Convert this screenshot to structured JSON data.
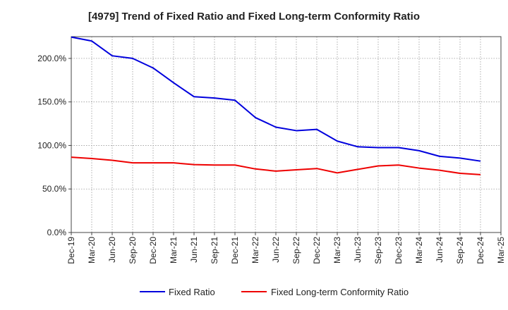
{
  "chart_data": {
    "type": "line",
    "title": "[4979]  Trend of Fixed Ratio and Fixed Long-term Conformity Ratio",
    "xlabel": "",
    "ylabel": "",
    "x": [
      "Dec-19",
      "Mar-20",
      "Jun-20",
      "Sep-20",
      "Dec-20",
      "Mar-21",
      "Jun-21",
      "Sep-21",
      "Dec-21",
      "Mar-22",
      "Jun-22",
      "Sep-22",
      "Dec-22",
      "Mar-23",
      "Jun-23",
      "Sep-23",
      "Dec-23",
      "Mar-24",
      "Jun-24",
      "Sep-24",
      "Dec-24",
      "Mar-25"
    ],
    "ylim": [
      0,
      225
    ],
    "yticks": [
      0,
      50,
      100,
      150,
      200
    ],
    "ytick_labels": [
      "0.0%",
      "50.0%",
      "100.0%",
      "150.0%",
      "200.0%"
    ],
    "grid": true,
    "legend_position": "bottom",
    "series": [
      {
        "name": "Fixed Ratio",
        "color": "#0000dd",
        "values": [
          224.5,
          220,
          203,
          200,
          189,
          172,
          156,
          154.5,
          152,
          132,
          121,
          117,
          118.5,
          105,
          98.5,
          97.5,
          97.5,
          94,
          87.5,
          85.5,
          82,
          null
        ]
      },
      {
        "name": "Fixed Long-term Conformity Ratio",
        "color": "#ee0000",
        "values": [
          86.5,
          85,
          83,
          80,
          80,
          80,
          78,
          77.5,
          77.5,
          73,
          70.5,
          72,
          73.5,
          68.5,
          72.5,
          76.5,
          77.5,
          74,
          71.5,
          68,
          66.5,
          null
        ]
      }
    ]
  }
}
